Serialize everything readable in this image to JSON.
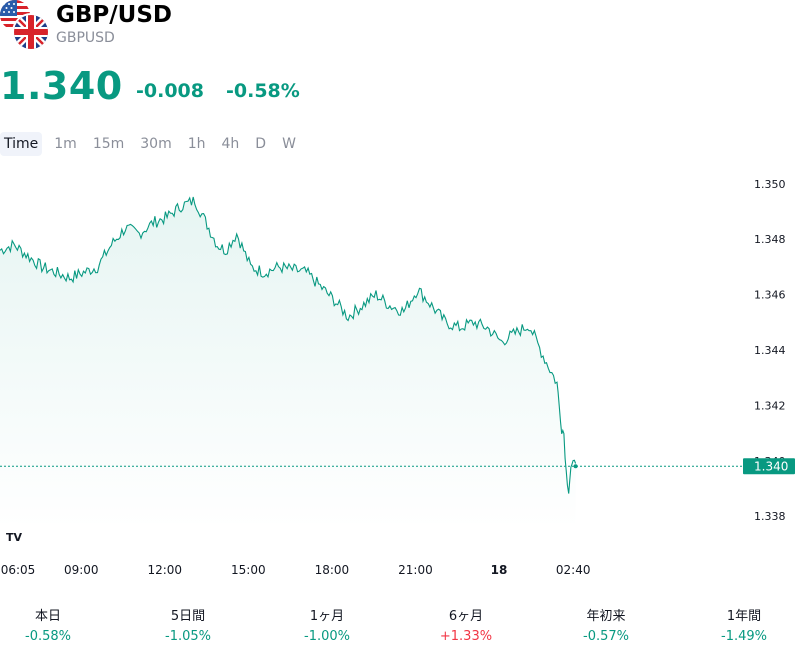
{
  "header": {
    "symbol": "GBP/USD",
    "ticker": "GBPUSD",
    "price": "1.340",
    "change": "-0.008",
    "change_percent": "-0.58%",
    "flags": [
      "us-flag-icon",
      "gb-flag-icon"
    ]
  },
  "tabs": [
    {
      "label": "Time",
      "active": true
    },
    {
      "label": "1m"
    },
    {
      "label": "15m"
    },
    {
      "label": "30m"
    },
    {
      "label": "1h"
    },
    {
      "label": "4h"
    },
    {
      "label": "D"
    },
    {
      "label": "W"
    }
  ],
  "colors": {
    "line": "#089981",
    "fill": "#e6f4f1",
    "up": "#f23645",
    "down": "#089981"
  },
  "chart_data": {
    "type": "area",
    "ylim": [
      1.3375,
      1.3505
    ],
    "yticks": [
      "1.350",
      "1.348",
      "1.346",
      "1.344",
      "1.342",
      "1.340",
      "1.338"
    ],
    "xticks": [
      {
        "label": "06:05",
        "x": 0
      },
      {
        "label": "09:00",
        "x": 2.917
      },
      {
        "label": "12:00",
        "x": 5.917
      },
      {
        "label": "15:00",
        "x": 8.917
      },
      {
        "label": "18:00",
        "x": 11.917
      },
      {
        "label": "21:00",
        "x": 14.917
      },
      {
        "label": "18",
        "x": 17.917,
        "bold": true
      },
      {
        "label": "02:40",
        "x": 20.583
      }
    ],
    "xlim": [
      0,
      26.5
    ],
    "last_value": "1.340",
    "last_price": 1.3398,
    "x": [
      0,
      0.5,
      1.0,
      1.5,
      2.0,
      2.5,
      3.0,
      3.5,
      4.0,
      4.5,
      5.0,
      5.5,
      6.0,
      6.5,
      7.0,
      7.5,
      7.8,
      8.1,
      8.5,
      9.0,
      9.5,
      10.0,
      10.5,
      11.0,
      11.5,
      12.0,
      12.5,
      13.0,
      13.5,
      14.0,
      14.5,
      15.0,
      15.5,
      16.0,
      16.5,
      17.0,
      17.5,
      18.0,
      18.5,
      19.0,
      19.5,
      20.0,
      20.08,
      20.17,
      20.25,
      20.33,
      20.42,
      20.5,
      20.58,
      20.67
    ],
    "values": [
      1.3476,
      1.3478,
      1.3474,
      1.347,
      1.3468,
      1.3466,
      1.3468,
      1.347,
      1.3478,
      1.3484,
      1.3482,
      1.3486,
      1.3488,
      1.3492,
      1.3494,
      1.3484,
      1.3478,
      1.3476,
      1.3482,
      1.347,
      1.3468,
      1.347,
      1.3469,
      1.3468,
      1.3463,
      1.3458,
      1.3452,
      1.3456,
      1.346,
      1.3456,
      1.3454,
      1.3462,
      1.3456,
      1.345,
      1.3448,
      1.345,
      1.3448,
      1.3443,
      1.3446,
      1.3449,
      1.3438,
      1.3428,
      1.342,
      1.3412,
      1.341,
      1.3396,
      1.339,
      1.3398,
      1.3398,
      1.3399
    ]
  },
  "periods": [
    {
      "label": "本日",
      "value": "-0.58%",
      "positive": false
    },
    {
      "label": "5日間",
      "value": "-1.05%",
      "positive": false
    },
    {
      "label": "1ヶ月",
      "value": "-1.00%",
      "positive": false
    },
    {
      "label": "6ヶ月",
      "value": "+1.33%",
      "positive": true
    },
    {
      "label": "年初来",
      "value": "-0.57%",
      "positive": false
    },
    {
      "label": "1年間",
      "value": "-1.49%",
      "positive": false
    }
  ]
}
